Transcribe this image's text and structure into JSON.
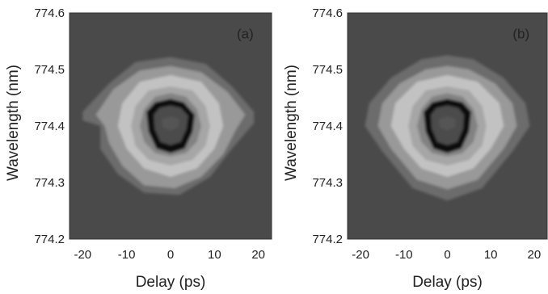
{
  "chart_data": [
    {
      "type": "heatmap",
      "panel_label": "(a)",
      "xlabel": "Delay (ps)",
      "ylabel": "Wavelength (nm)",
      "xlim": [
        -23,
        23
      ],
      "ylim": [
        774.2,
        774.6
      ],
      "xticks": [
        "-20",
        "-10",
        "0",
        "10",
        "20"
      ],
      "yticks": [
        "774.2",
        "774.3",
        "774.4",
        "774.5",
        "774.6"
      ],
      "colormap": "grayscale",
      "background_color": "#4a4a4a",
      "contours": [
        {
          "level": 1,
          "color": "#6c6c6c",
          "points": [
            [
              -16,
              774.4
            ],
            [
              -20,
              774.41
            ],
            [
              -20,
              774.425
            ],
            [
              -14,
              774.475
            ],
            [
              -8,
              774.513
            ],
            [
              0,
              774.522
            ],
            [
              8,
              774.51
            ],
            [
              14,
              774.47
            ],
            [
              19,
              774.425
            ],
            [
              19,
              774.405
            ],
            [
              14,
              774.36
            ],
            [
              9,
              774.31
            ],
            [
              2,
              774.278
            ],
            [
              -6,
              774.282
            ],
            [
              -12,
              774.315
            ],
            [
              -16,
              774.36
            ]
          ]
        },
        {
          "level": 2,
          "color": "#999999",
          "points": [
            [
              -15,
              774.4
            ],
            [
              -17,
              774.42
            ],
            [
              -13,
              774.465
            ],
            [
              -7,
              774.498
            ],
            [
              0,
              774.506
            ],
            [
              7,
              774.495
            ],
            [
              13,
              774.46
            ],
            [
              17,
              774.42
            ],
            [
              15,
              774.395
            ],
            [
              12,
              774.35
            ],
            [
              7,
              774.31
            ],
            [
              1,
              774.29
            ],
            [
              -6,
              774.295
            ],
            [
              -11,
              774.33
            ],
            [
              -14,
              774.37
            ]
          ]
        },
        {
          "level": 3,
          "color": "#c2c2c2",
          "points": [
            [
              -12,
              774.4
            ],
            [
              -11,
              774.44
            ],
            [
              -7,
              774.478
            ],
            [
              0,
              774.49
            ],
            [
              7,
              774.478
            ],
            [
              11,
              774.44
            ],
            [
              12,
              774.4
            ],
            [
              10,
              774.36
            ],
            [
              6,
              774.325
            ],
            [
              0,
              774.31
            ],
            [
              -6,
              774.325
            ],
            [
              -10,
              774.36
            ]
          ]
        },
        {
          "level": 4,
          "color": "#a6a6a6",
          "points": [
            [
              -9,
              774.4
            ],
            [
              -8,
              774.435
            ],
            [
              -5,
              774.463
            ],
            [
              0,
              774.47
            ],
            [
              5,
              774.463
            ],
            [
              8,
              774.435
            ],
            [
              9,
              774.4
            ],
            [
              8,
              774.365
            ],
            [
              5,
              774.34
            ],
            [
              0,
              774.33
            ],
            [
              -5,
              774.34
            ],
            [
              -8,
              774.365
            ]
          ]
        },
        {
          "level": 5,
          "color": "#828282",
          "points": [
            [
              -7,
              774.4
            ],
            [
              -6,
              774.43
            ],
            [
              -3.5,
              774.452
            ],
            [
              0,
              774.458
            ],
            [
              3.5,
              774.452
            ],
            [
              6,
              774.43
            ],
            [
              7,
              774.4
            ],
            [
              6,
              774.372
            ],
            [
              3.5,
              774.352
            ],
            [
              0,
              774.346
            ],
            [
              -3.5,
              774.352
            ],
            [
              -6,
              774.372
            ]
          ]
        },
        {
          "level": 6,
          "color": "#111111",
          "points": [
            [
              -5.5,
              774.425
            ],
            [
              -3.5,
              774.442
            ],
            [
              0,
              774.448
            ],
            [
              3,
              774.442
            ],
            [
              5.5,
              774.42
            ],
            [
              5,
              774.39
            ],
            [
              3.2,
              774.36
            ],
            [
              0,
              774.352
            ],
            [
              -3.2,
              774.36
            ],
            [
              -5,
              774.39
            ]
          ]
        },
        {
          "level": 7,
          "color": "#4c4c4c",
          "points": [
            [
              -3.8,
              774.42
            ],
            [
              -2.5,
              774.432
            ],
            [
              0,
              774.436
            ],
            [
              2.3,
              774.432
            ],
            [
              4,
              774.418
            ],
            [
              3.6,
              774.395
            ],
            [
              2.3,
              774.372
            ],
            [
              0,
              774.366
            ],
            [
              -2.3,
              774.372
            ],
            [
              -3.6,
              774.395
            ]
          ]
        },
        {
          "level": 8,
          "color": "#545454",
          "points": [
            [
              -2,
              774.412
            ],
            [
              0,
              774.418
            ],
            [
              2,
              774.412
            ],
            [
              1.8,
              774.398
            ],
            [
              0,
              774.392
            ],
            [
              -1.8,
              774.398
            ]
          ]
        }
      ]
    },
    {
      "type": "heatmap",
      "panel_label": "(b)",
      "xlabel": "Delay (ps)",
      "ylabel": "Wavelength (nm)",
      "xlim": [
        -23,
        23
      ],
      "ylim": [
        774.2,
        774.6
      ],
      "xticks": [
        "-20",
        "-10",
        "0",
        "10",
        "20"
      ],
      "yticks": [
        "774.2",
        "774.3",
        "774.4",
        "774.5",
        "774.6"
      ],
      "colormap": "grayscale",
      "background_color": "#4a4a4a",
      "contours": [
        {
          "level": 1,
          "color": "#6c6c6c",
          "points": [
            [
              -19,
              774.4
            ],
            [
              -18,
              774.44
            ],
            [
              -13,
              774.485
            ],
            [
              -6,
              774.518
            ],
            [
              0,
              774.525
            ],
            [
              6,
              774.518
            ],
            [
              13,
              774.485
            ],
            [
              18,
              774.44
            ],
            [
              19,
              774.4
            ],
            [
              15,
              774.355
            ],
            [
              8,
              774.29
            ],
            [
              0,
              774.268
            ],
            [
              -8,
              774.29
            ],
            [
              -15,
              774.355
            ]
          ]
        },
        {
          "level": 2,
          "color": "#999999",
          "points": [
            [
              -16,
              774.4
            ],
            [
              -15,
              774.44
            ],
            [
              -11,
              774.475
            ],
            [
              -5,
              774.5
            ],
            [
              0,
              774.506
            ],
            [
              5,
              774.5
            ],
            [
              11,
              774.475
            ],
            [
              15,
              774.44
            ],
            [
              16,
              774.4
            ],
            [
              13,
              774.36
            ],
            [
              7,
              774.305
            ],
            [
              0,
              774.288
            ],
            [
              -7,
              774.305
            ],
            [
              -13,
              774.36
            ]
          ]
        },
        {
          "level": 3,
          "color": "#c2c2c2",
          "points": [
            [
              -13,
              774.4
            ],
            [
              -12,
              774.44
            ],
            [
              -7,
              774.478
            ],
            [
              0,
              774.49
            ],
            [
              7,
              774.478
            ],
            [
              12,
              774.44
            ],
            [
              13,
              774.4
            ],
            [
              10,
              774.36
            ],
            [
              6,
              774.325
            ],
            [
              0,
              774.31
            ],
            [
              -6,
              774.325
            ],
            [
              -10,
              774.36
            ]
          ]
        },
        {
          "level": 4,
          "color": "#a6a6a6",
          "points": [
            [
              -9,
              774.4
            ],
            [
              -8,
              774.435
            ],
            [
              -5,
              774.463
            ],
            [
              0,
              774.47
            ],
            [
              5,
              774.463
            ],
            [
              8,
              774.435
            ],
            [
              9,
              774.4
            ],
            [
              8,
              774.365
            ],
            [
              5,
              774.34
            ],
            [
              0,
              774.33
            ],
            [
              -5,
              774.34
            ],
            [
              -8,
              774.365
            ]
          ]
        },
        {
          "level": 5,
          "color": "#828282",
          "points": [
            [
              -7,
              774.4
            ],
            [
              -6,
              774.43
            ],
            [
              -3.5,
              774.452
            ],
            [
              0,
              774.458
            ],
            [
              3.5,
              774.452
            ],
            [
              6,
              774.43
            ],
            [
              7,
              774.4
            ],
            [
              6,
              774.372
            ],
            [
              3.5,
              774.352
            ],
            [
              0,
              774.346
            ],
            [
              -3.5,
              774.352
            ],
            [
              -6,
              774.372
            ]
          ]
        },
        {
          "level": 6,
          "color": "#111111",
          "points": [
            [
              -5.5,
              774.425
            ],
            [
              -3.5,
              774.442
            ],
            [
              0,
              774.448
            ],
            [
              3.5,
              774.442
            ],
            [
              5.5,
              774.425
            ],
            [
              5,
              774.39
            ],
            [
              3.2,
              774.36
            ],
            [
              0,
              774.352
            ],
            [
              -3.2,
              774.36
            ],
            [
              -5,
              774.39
            ]
          ]
        },
        {
          "level": 7,
          "color": "#4c4c4c",
          "points": [
            [
              -3.8,
              774.42
            ],
            [
              -2.5,
              774.432
            ],
            [
              0,
              774.436
            ],
            [
              2.5,
              774.432
            ],
            [
              3.8,
              774.42
            ],
            [
              3.6,
              774.395
            ],
            [
              2.3,
              774.372
            ],
            [
              0,
              774.366
            ],
            [
              -2.3,
              774.372
            ],
            [
              -3.6,
              774.395
            ]
          ]
        },
        {
          "level": 8,
          "color": "#545454",
          "points": [
            [
              -2,
              774.412
            ],
            [
              0,
              774.418
            ],
            [
              2,
              774.412
            ],
            [
              1.8,
              774.398
            ],
            [
              0,
              774.392
            ],
            [
              -1.8,
              774.398
            ]
          ]
        }
      ]
    }
  ]
}
